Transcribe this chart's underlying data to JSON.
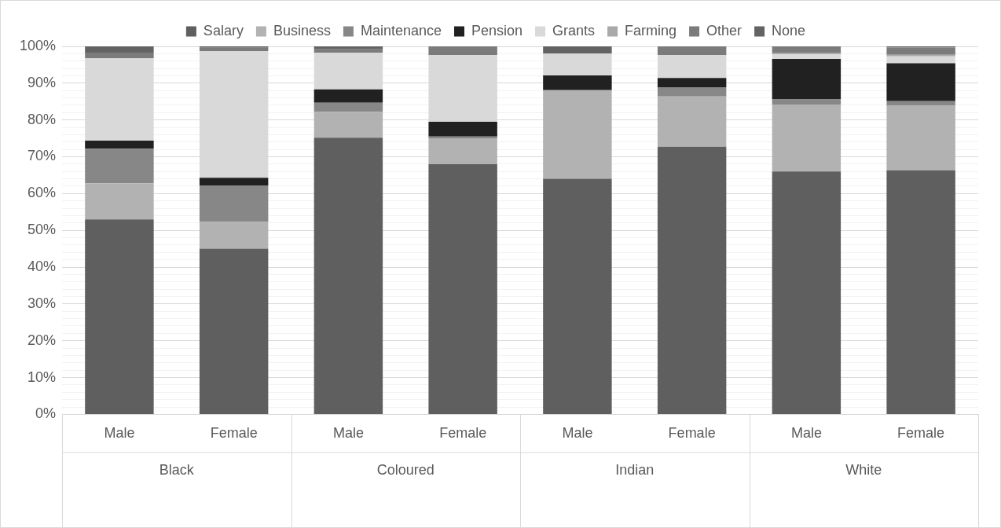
{
  "chart_data": {
    "type": "bar",
    "stacked": true,
    "legend": "top",
    "grid": "y",
    "categories": [
      "Male",
      "Female",
      "Male",
      "Female",
      "Male",
      "Female",
      "Male",
      "Female"
    ],
    "annotations": [
      "Black",
      "Coloured",
      "Indian",
      "White"
    ],
    "ylim": [
      0,
      100
    ],
    "yticks": [
      {
        "value": 0,
        "label": "0%"
      },
      {
        "value": 2,
        "label": null
      },
      {
        "value": 4,
        "label": null
      },
      {
        "value": 6,
        "label": null
      },
      {
        "value": 8,
        "label": null
      },
      {
        "value": 10,
        "label": "10%"
      },
      {
        "value": 12,
        "label": null
      },
      {
        "value": 14,
        "label": null
      },
      {
        "value": 16,
        "label": null
      },
      {
        "value": 18,
        "label": null
      },
      {
        "value": 20,
        "label": "20%"
      },
      {
        "value": 22,
        "label": null
      },
      {
        "value": 24,
        "label": null
      },
      {
        "value": 26,
        "label": null
      },
      {
        "value": 28,
        "label": null
      },
      {
        "value": 30,
        "label": "30%"
      },
      {
        "value": 32,
        "label": null
      },
      {
        "value": 34,
        "label": null
      },
      {
        "value": 36,
        "label": null
      },
      {
        "value": 38,
        "label": null
      },
      {
        "value": 40,
        "label": "40%"
      },
      {
        "value": 42,
        "label": null
      },
      {
        "value": 44,
        "label": null
      },
      {
        "value": 46,
        "label": null
      },
      {
        "value": 48,
        "label": null
      },
      {
        "value": 50,
        "label": "50%"
      },
      {
        "value": 52,
        "label": null
      },
      {
        "value": 54,
        "label": null
      },
      {
        "value": 56,
        "label": null
      },
      {
        "value": 58,
        "label": null
      },
      {
        "value": 60,
        "label": "60%"
      },
      {
        "value": 62,
        "label": null
      },
      {
        "value": 64,
        "label": null
      },
      {
        "value": 66,
        "label": null
      },
      {
        "value": 68,
        "label": null
      },
      {
        "value": 70,
        "label": "70%"
      },
      {
        "value": 72,
        "label": null
      },
      {
        "value": 74,
        "label": null
      },
      {
        "value": 76,
        "label": null
      },
      {
        "value": 78,
        "label": null
      },
      {
        "value": 80,
        "label": "80%"
      },
      {
        "value": 82,
        "label": null
      },
      {
        "value": 84,
        "label": null
      },
      {
        "value": 86,
        "label": null
      },
      {
        "value": 88,
        "label": null
      },
      {
        "value": 90,
        "label": "90%"
      },
      {
        "value": 92,
        "label": null
      },
      {
        "value": 94,
        "label": null
      },
      {
        "value": 96,
        "label": null
      },
      {
        "value": 98,
        "label": null
      },
      {
        "value": 100,
        "label": "100%"
      }
    ],
    "series": [
      {
        "name": "Salary",
        "color": "#5f5f5f",
        "values": [
          53,
          45,
          75.2,
          68,
          64,
          72.7,
          66,
          66.3
        ]
      },
      {
        "name": "Business",
        "color": "#b2b2b2",
        "values": [
          9.8,
          7.3,
          7,
          7,
          24.1,
          13.7,
          18.2,
          17.7
        ]
      },
      {
        "name": "Maintenance",
        "color": "#878787",
        "values": [
          9.4,
          9.9,
          2.5,
          0.5,
          0,
          2.5,
          1.4,
          1.1
        ]
      },
      {
        "name": "Pension",
        "color": "#212121",
        "values": [
          2.2,
          2.1,
          3.6,
          4,
          4,
          2.5,
          11,
          10.3
        ]
      },
      {
        "name": "Grants",
        "color": "#d9d9d9",
        "values": [
          22.4,
          34.4,
          10,
          18.1,
          6,
          6.2,
          1.2,
          1.9
        ]
      },
      {
        "name": "Farming",
        "color": "#a9a9a9",
        "values": [
          0,
          0,
          0,
          0,
          0,
          0,
          0.5,
          0.4
        ]
      },
      {
        "name": "Other",
        "color": "#7b7b7b",
        "values": [
          1.5,
          0.9,
          0.9,
          2.4,
          0,
          2.4,
          1.7,
          2
        ]
      },
      {
        "name": "None",
        "color": "#636363",
        "values": [
          1.7,
          0.4,
          0.8,
          0,
          1.9,
          0,
          0,
          0.3
        ]
      }
    ]
  }
}
